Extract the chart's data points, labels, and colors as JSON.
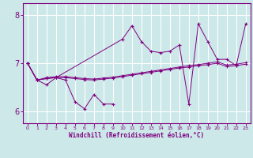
{
  "bg_color": "#cce8e8",
  "line_color": "#800080",
  "grid_color": "#ffffff",
  "axis_color": "#800080",
  "xlim": [
    -0.5,
    23.5
  ],
  "ylim": [
    5.75,
    8.25
  ],
  "yticks": [
    6,
    7,
    8
  ],
  "xticks": [
    0,
    1,
    2,
    3,
    4,
    5,
    6,
    7,
    8,
    9,
    10,
    11,
    12,
    13,
    14,
    15,
    16,
    17,
    18,
    19,
    20,
    21,
    22,
    23
  ],
  "xlabel": "Windchill (Refroidissement éolien,°C)",
  "series1_x": [
    0,
    1,
    2,
    3,
    4,
    5,
    6,
    7,
    8,
    9
  ],
  "series1_y": [
    7.0,
    6.65,
    6.55,
    6.7,
    6.65,
    6.2,
    6.05,
    6.35,
    6.15,
    6.15
  ],
  "series2_x": [
    0,
    1,
    2,
    3,
    4,
    5,
    6,
    7,
    8,
    9,
    10,
    11,
    12,
    13,
    14,
    15,
    16,
    17,
    18,
    19,
    20,
    21,
    22,
    23
  ],
  "series2_y": [
    7.0,
    6.65,
    6.68,
    6.7,
    6.7,
    6.68,
    6.66,
    6.65,
    6.67,
    6.69,
    6.72,
    6.75,
    6.78,
    6.81,
    6.84,
    6.87,
    6.9,
    6.92,
    6.95,
    6.97,
    7.0,
    6.93,
    6.95,
    6.98
  ],
  "series3_x": [
    0,
    1,
    2,
    3,
    4,
    5,
    6,
    7,
    8,
    9,
    10,
    11,
    12,
    13,
    14,
    15,
    16,
    17,
    18,
    19,
    20,
    21,
    22,
    23
  ],
  "series3_y": [
    7.0,
    6.65,
    6.7,
    6.72,
    6.72,
    6.7,
    6.68,
    6.67,
    6.69,
    6.71,
    6.74,
    6.77,
    6.8,
    6.83,
    6.86,
    6.89,
    6.92,
    6.95,
    6.97,
    7.0,
    7.03,
    6.96,
    6.98,
    7.01
  ],
  "series4_x": [
    0,
    1,
    2,
    3,
    10,
    11,
    12,
    13,
    14,
    15,
    16,
    17,
    18,
    19,
    20,
    21,
    22,
    23
  ],
  "series4_y": [
    7.0,
    6.65,
    6.68,
    6.7,
    7.5,
    7.78,
    7.45,
    7.25,
    7.22,
    7.25,
    7.38,
    6.15,
    7.82,
    7.45,
    7.08,
    7.08,
    6.95,
    7.82
  ]
}
